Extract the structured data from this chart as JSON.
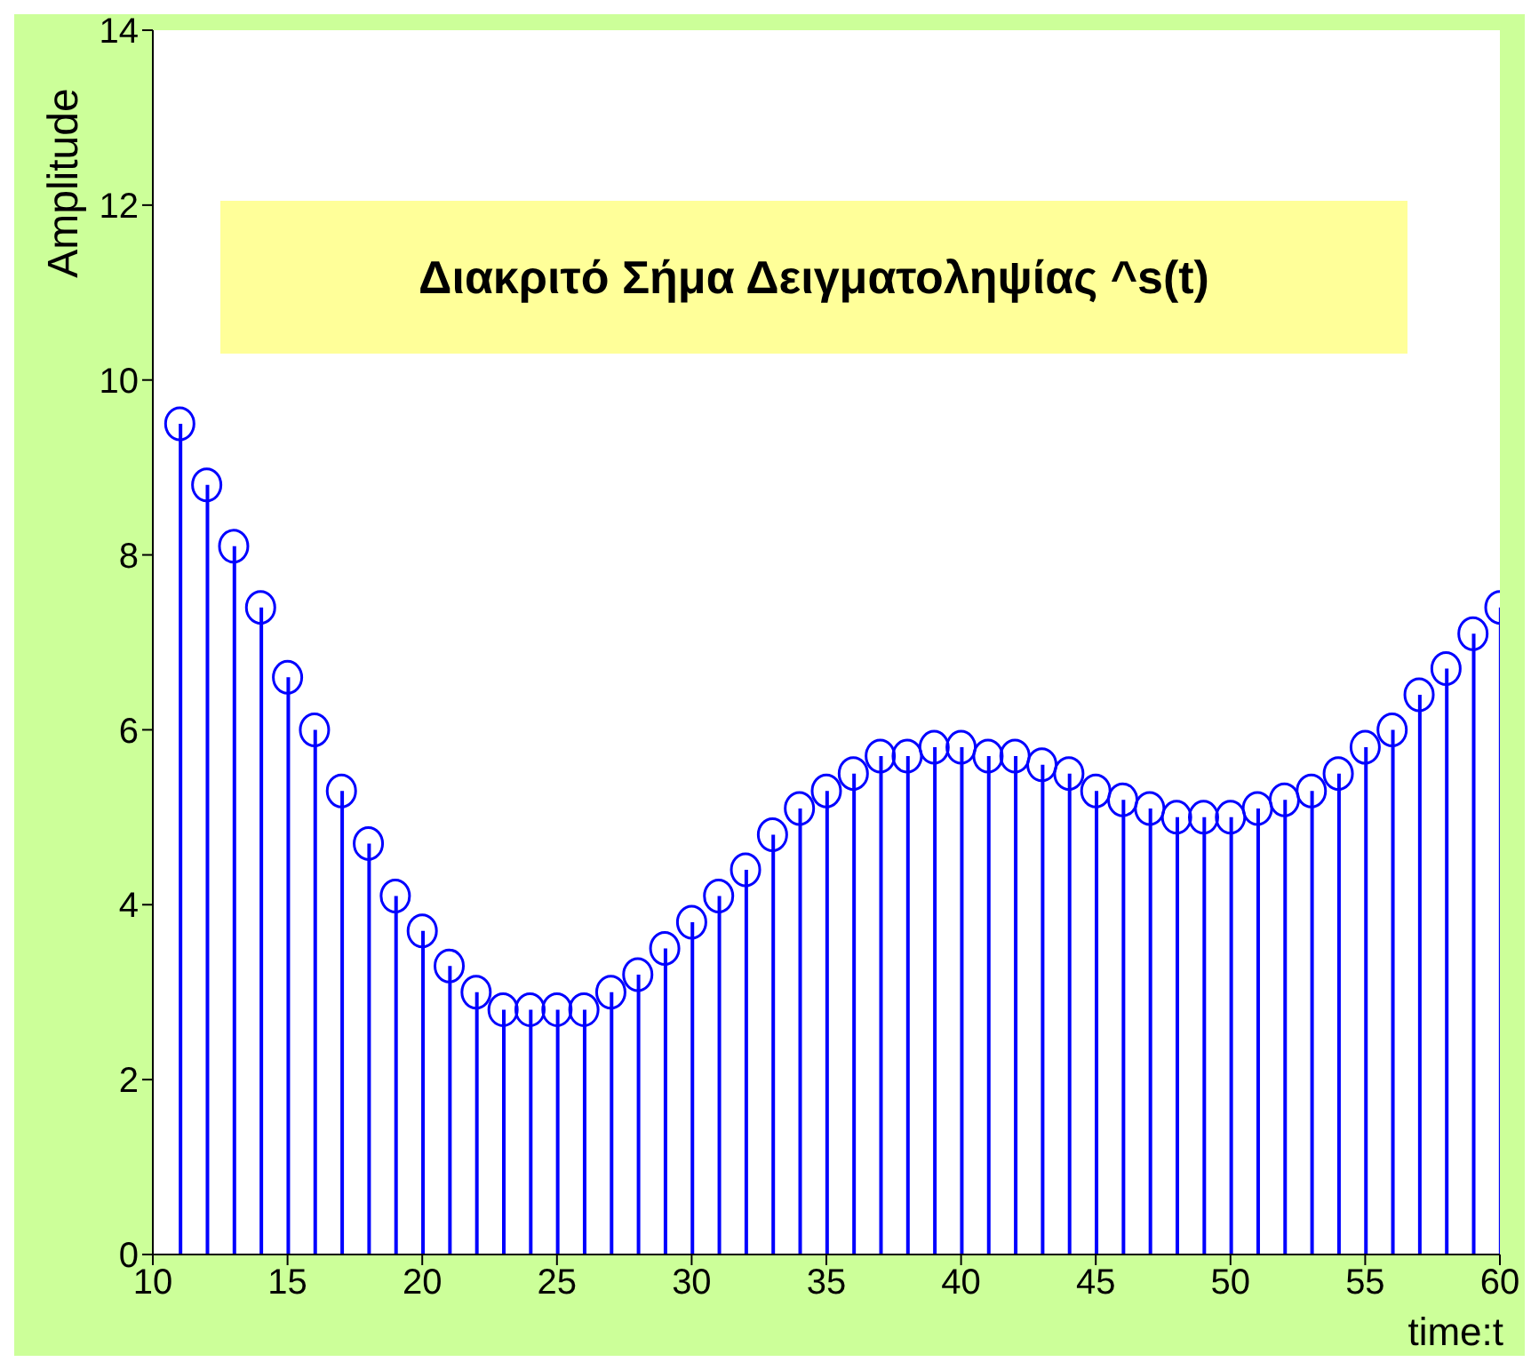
{
  "chart_data": {
    "type": "lollipop",
    "title": "Διακριτό Σήμα Δειγματοληψίας ^s(t)",
    "xlabel": "time:t",
    "ylabel": "Amplitude",
    "x": [
      11,
      12,
      13,
      14,
      15,
      16,
      17,
      18,
      19,
      20,
      21,
      22,
      23,
      24,
      25,
      26,
      27,
      28,
      29,
      30,
      31,
      32,
      33,
      34,
      35,
      36,
      37,
      38,
      39,
      40,
      41,
      42,
      43,
      44,
      45,
      46,
      47,
      48,
      49,
      50,
      51,
      52,
      53,
      54,
      55,
      56,
      57,
      58,
      59,
      60
    ],
    "series": [
      {
        "color": "#0000ff",
        "values": [
          9.5,
          8.8,
          8.1,
          7.4,
          6.6,
          6.0,
          5.3,
          4.7,
          4.1,
          3.7,
          3.3,
          3.0,
          2.8,
          2.8,
          2.8,
          2.8,
          3.0,
          3.2,
          3.5,
          3.8,
          4.1,
          4.4,
          4.8,
          5.1,
          5.3,
          5.5,
          5.7,
          5.7,
          5.8,
          5.8,
          5.7,
          5.7,
          5.6,
          5.5,
          5.3,
          5.2,
          5.1,
          5.0,
          5.0,
          5.0,
          5.1,
          5.2,
          5.3,
          5.5,
          5.8,
          6.0,
          6.4,
          6.7,
          7.1,
          7.4
        ]
      }
    ],
    "xlim": [
      10,
      60
    ],
    "xticks": [
      10,
      15,
      20,
      25,
      30,
      35,
      40,
      45,
      50,
      55,
      60
    ],
    "ylim": [
      0,
      14
    ],
    "yticks": [
      0,
      2,
      4,
      6,
      8,
      10,
      12,
      14
    ],
    "marker": "circle"
  }
}
